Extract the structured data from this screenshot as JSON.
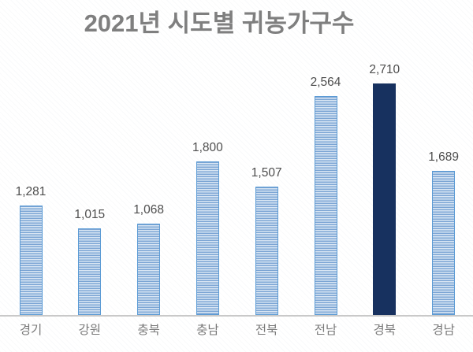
{
  "chart_data": {
    "type": "bar",
    "title": "2021년 시도별 귀농가구수",
    "categories": [
      "경기",
      "강원",
      "충북",
      "충남",
      "전북",
      "전남",
      "경북",
      "경남"
    ],
    "values": [
      1281,
      1015,
      1068,
      1800,
      1507,
      2564,
      2710,
      1689
    ],
    "value_labels": [
      "1,281",
      "1,015",
      "1,068",
      "1,800",
      "1,507",
      "2,564",
      "2,710",
      "1,689"
    ],
    "xlabel": "",
    "ylabel": "",
    "ylim": [
      0,
      2710
    ],
    "grid": false,
    "legend": false,
    "highlight_category": "경북",
    "bar_style": "horizontal-stripe-pattern",
    "colors": {
      "title_text": "#7f7f7f",
      "value_label_text": "#4d4d4d",
      "category_label_text": "#7a7a7a",
      "axis_line": "#c9c9c9",
      "bar_border": "#5b9bd5",
      "bar_stripe_dark": "#7ca5d4",
      "bar_stripe_mid": "#abc7e5",
      "bar_stripe_light": "#d8e5f3",
      "highlight_bar": "#17315f"
    }
  }
}
